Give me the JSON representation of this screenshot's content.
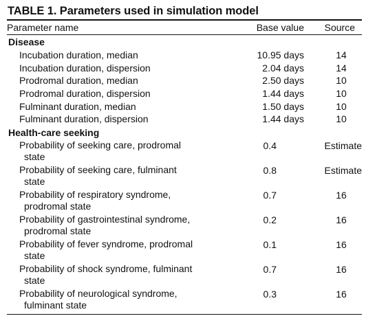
{
  "title": "TABLE 1. Parameters used in simulation model",
  "columns": {
    "name": "Parameter name",
    "base": "Base value",
    "source": "Source"
  },
  "sections": [
    {
      "label": "Disease",
      "rows": [
        {
          "name": "Incubation duration, median",
          "base": "10.95 days",
          "source": "14"
        },
        {
          "name": "Incubation duration, dispersion",
          "base": "2.04 days",
          "source": "14"
        },
        {
          "name": "Prodromal duration, median",
          "base": "2.50 days",
          "source": "10"
        },
        {
          "name": "Prodromal duration, dispersion",
          "base": "1.44 days",
          "source": "10"
        },
        {
          "name": "Fulminant duration, median",
          "base": "1.50 days",
          "source": "10"
        },
        {
          "name": "Fulminant duration, dispersion",
          "base": "1.44 days",
          "source": "10"
        }
      ]
    },
    {
      "label": "Health-care seeking",
      "rows": [
        {
          "name1": "Probability of seeking care, prodromal",
          "name2": "state",
          "base": "0.4",
          "source": "Estimate"
        },
        {
          "name1": "Probability of seeking care, fulminant",
          "name2": "state",
          "base": "0.8",
          "source": "Estimate"
        },
        {
          "name1": "Probability of respiratory syndrome,",
          "name2": "prodromal state",
          "base": "0.7",
          "source": "16"
        },
        {
          "name1": "Probability of gastrointestinal syndrome,",
          "name2": "prodromal state",
          "base": "0.2",
          "source": "16"
        },
        {
          "name1": "Probability of fever syndrome, prodromal",
          "name2": "state",
          "base": "0.1",
          "source": "16"
        },
        {
          "name1": "Probability of shock syndrome, fulminant",
          "name2": "state",
          "base": "0.7",
          "source": "16"
        },
        {
          "name1": "Probability of neurological syndrome,",
          "name2": "fulminant state",
          "base": "0.3",
          "source": "16"
        }
      ]
    }
  ]
}
